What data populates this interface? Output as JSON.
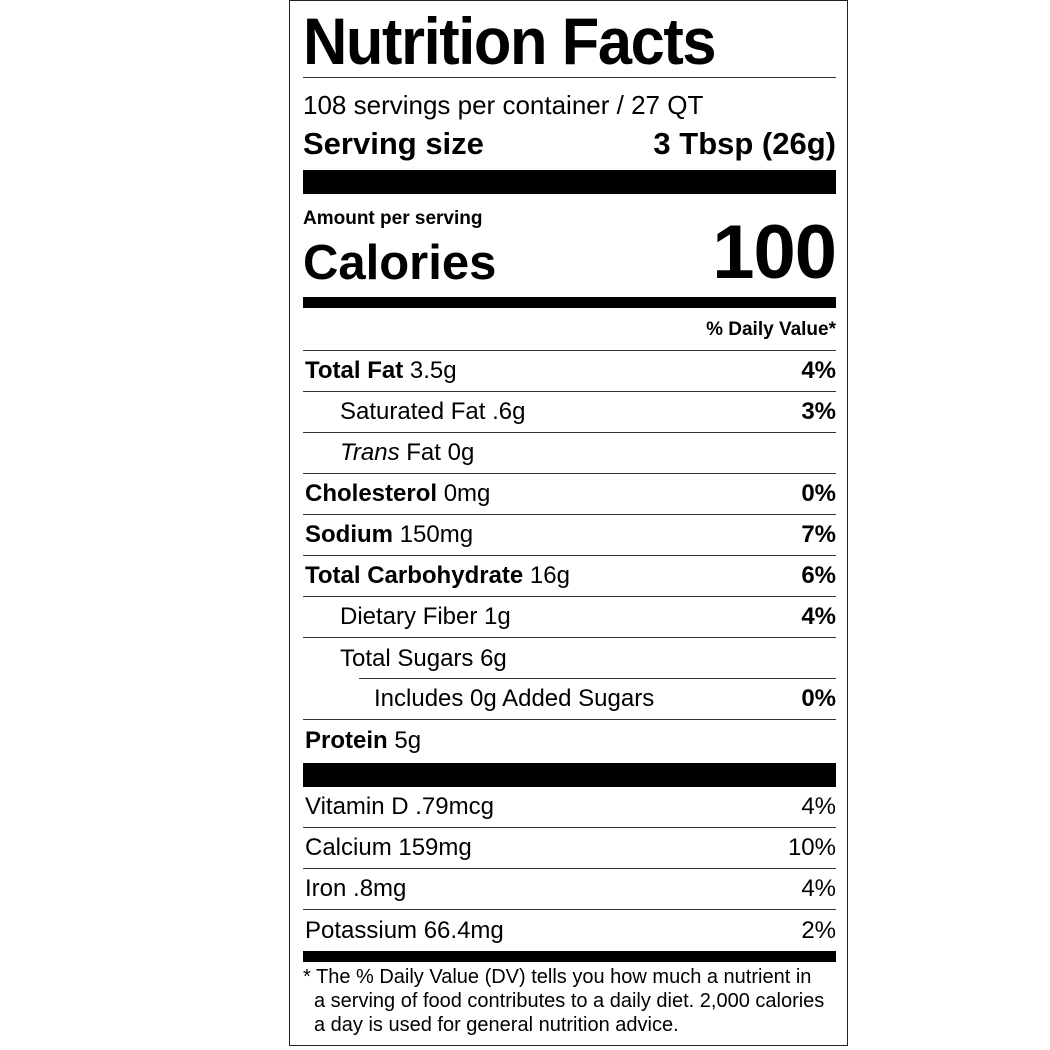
{
  "title": "Nutrition Facts",
  "servings_per_container": "108 servings per container / 27 QT",
  "serving_size": {
    "label": "Serving size",
    "value": "3 Tbsp (26g)"
  },
  "amount_per_serving": "Amount per serving",
  "calories": {
    "label": "Calories",
    "value": "100"
  },
  "daily_value_header": "% Daily Value*",
  "nutrients": [
    {
      "name": "Total Fat",
      "amount": "3.5g",
      "dv": "4%"
    },
    {
      "name": "Saturated Fat",
      "amount": ".6g",
      "dv": "3%"
    },
    {
      "name_italic": "Trans",
      "name": "Fat",
      "amount": "0g",
      "dv": ""
    },
    {
      "name": "Cholesterol",
      "amount": "0mg",
      "dv": "0%"
    },
    {
      "name": "Sodium",
      "amount": "150mg",
      "dv": "7%"
    },
    {
      "name": "Total Carbohydrate",
      "amount": "16g",
      "dv": "6%"
    },
    {
      "name": "Dietary Fiber",
      "amount": "1g",
      "dv": "4%"
    },
    {
      "name": "Total Sugars",
      "amount": "6g",
      "dv": ""
    },
    {
      "name": "Includes 0g Added Sugars",
      "amount": "",
      "dv": "0%"
    },
    {
      "name": "Protein",
      "amount": "5g",
      "dv": ""
    }
  ],
  "vitamins": [
    {
      "name": "Vitamin D .79mcg",
      "dv": "4%"
    },
    {
      "name": "Calcium 159mg",
      "dv": "10%"
    },
    {
      "name": "Iron .8mg",
      "dv": "4%"
    },
    {
      "name": "Potassium 66.4mg",
      "dv": "2%"
    }
  ],
  "footnote": {
    "line1": "* The % Daily Value (DV) tells you how much a nutrient in",
    "line2": "a serving of food contributes to a daily diet. 2,000 calories",
    "line3": "a day is used for general nutrition advice."
  }
}
